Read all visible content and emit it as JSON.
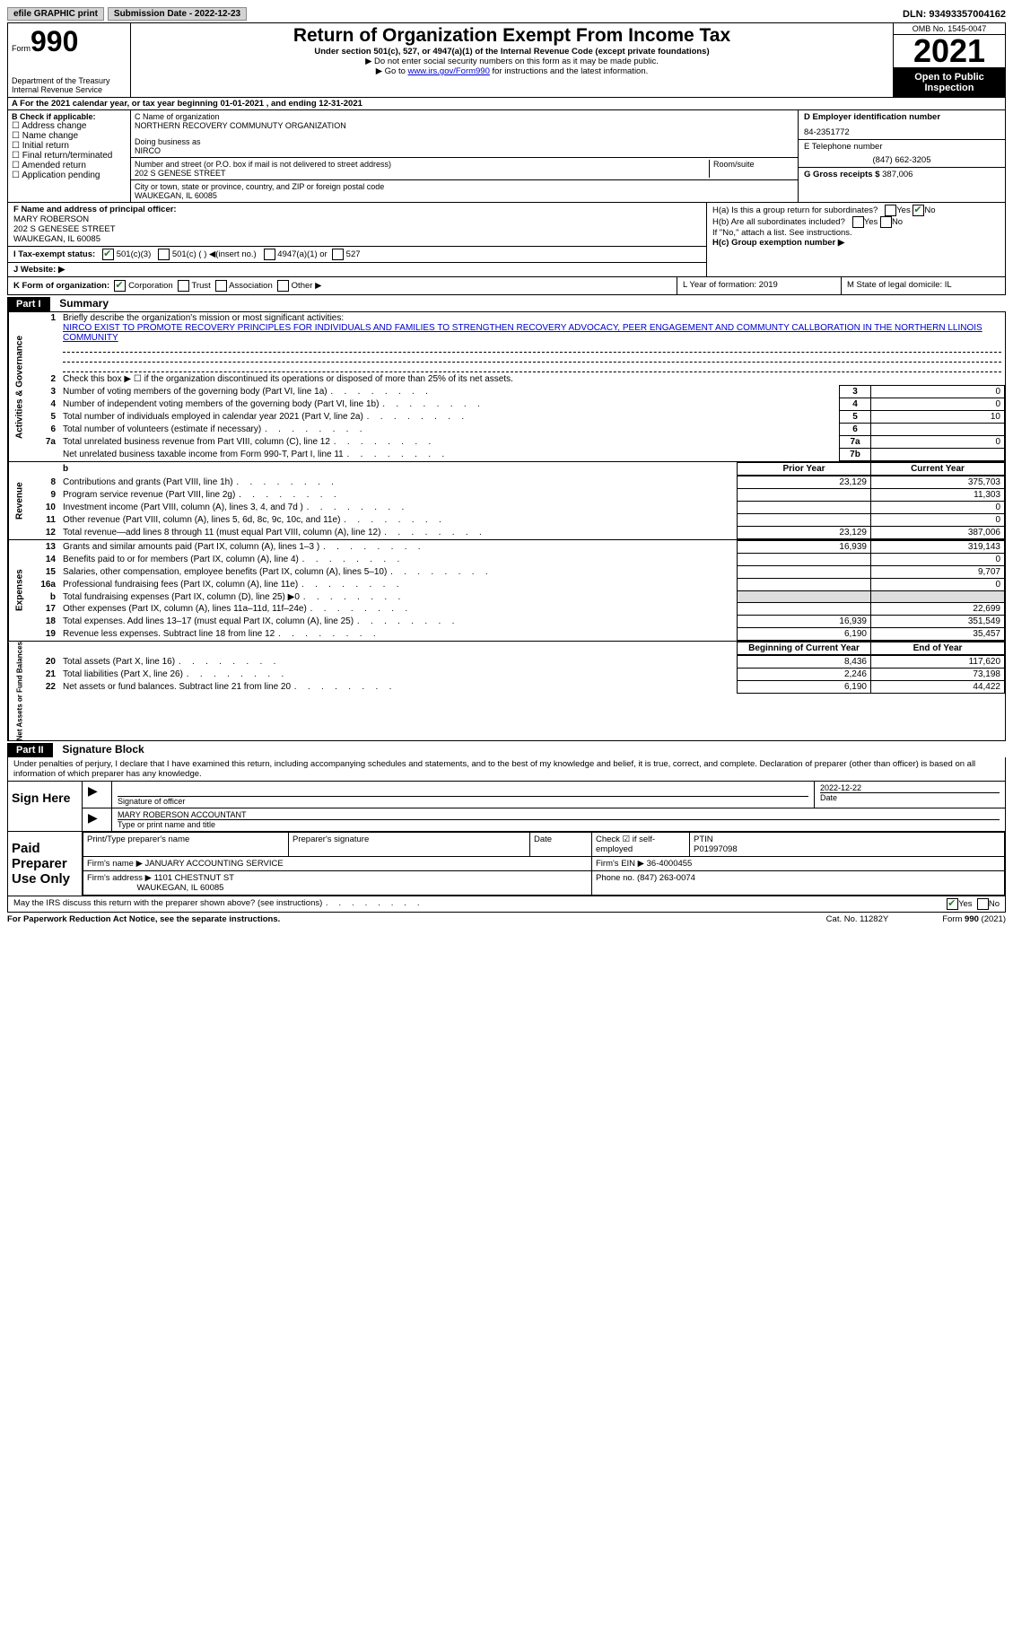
{
  "topbar": {
    "efile": "efile GRAPHIC print",
    "submission_label": "Submission Date - 2022-12-23",
    "dln": "DLN: 93493357004162"
  },
  "header": {
    "form_word": "Form",
    "form_num": "990",
    "dept1": "Department of the Treasury",
    "dept2": "Internal Revenue Service",
    "title": "Return of Organization Exempt From Income Tax",
    "sub": "Under section 501(c), 527, or 4947(a)(1) of the Internal Revenue Code (except private foundations)",
    "instr1": "▶ Do not enter social security numbers on this form as it may be made public.",
    "instr2_pre": "▶ Go to ",
    "instr2_link": "www.irs.gov/Form990",
    "instr2_post": " for instructions and the latest information.",
    "omb": "OMB No. 1545-0047",
    "year": "2021",
    "open": "Open to Public Inspection"
  },
  "rowA": "A For the 2021 calendar year, or tax year beginning 01-01-2021   , and ending 12-31-2021",
  "colB": {
    "head": "B Check if applicable:",
    "items": [
      "Address change",
      "Name change",
      "Initial return",
      "Final return/terminated",
      "Amended return",
      "Application pending"
    ]
  },
  "colC": {
    "name_lbl": "C Name of organization",
    "name": "NORTHERN RECOVERY COMMUNUTY ORGANIZATION",
    "dba_lbl": "Doing business as",
    "dba": "NIRCO",
    "addr_lbl": "Number and street (or P.O. box if mail is not delivered to street address)",
    "room_lbl": "Room/suite",
    "addr": "202 S GENESE STREET",
    "city_lbl": "City or town, state or province, country, and ZIP or foreign postal code",
    "city": "WAUKEGAN, IL  60085"
  },
  "colD": {
    "ein_lbl": "D Employer identification number",
    "ein": "84-2351772",
    "tel_lbl": "E Telephone number",
    "tel": "(847) 662-3205",
    "gross_lbl": "G Gross receipts $",
    "gross": "387,006"
  },
  "rowF": {
    "lbl": "F Name and address of principal officer:",
    "l1": "MARY ROBERSON",
    "l2": "202 S GENESEE STREET",
    "l3": "WAUKEGAN, IL  60085"
  },
  "rowH": {
    "a": "H(a)  Is this a group return for subordinates?",
    "b": "H(b)  Are all subordinates included?",
    "b2": "If \"No,\" attach a list. See instructions.",
    "c": "H(c)  Group exemption number ▶",
    "yes": "Yes",
    "no": "No"
  },
  "rowI": {
    "lbl": "I    Tax-exempt status:",
    "o1": "501(c)(3)",
    "o2": "501(c) (  ) ◀(insert no.)",
    "o3": "4947(a)(1) or",
    "o4": "527"
  },
  "rowJ": "J   Website: ▶",
  "rowK": {
    "k": "K Form of organization:",
    "corp": "Corporation",
    "trust": "Trust",
    "assoc": "Association",
    "other": "Other ▶",
    "l": "L Year of formation: 2019",
    "m": "M State of legal domicile: IL"
  },
  "part1": {
    "hdr": "Part I",
    "title": "Summary"
  },
  "summary": {
    "sec1_label": "Activities & Governance",
    "line1_lbl": "Briefly describe the organization's mission or most significant activities:",
    "line1_text": "NIRCO EXIST TO PROMOTE RECOVERY PRINCIPLES FOR INDIVIDUALS AND FAMILIES TO STRENGTHEN RECOVERY ADVOCACY, PEER ENGAGEMENT AND COMMUNTY CALLBORATION IN THE NORTHERN LLINOIS COMMUNITY",
    "line2": "Check this box ▶ ☐ if the organization discontinued its operations or disposed of more than 25% of its net assets.",
    "rows": [
      {
        "n": "3",
        "t": "Number of voting members of the governing body (Part VI, line 1a)",
        "box": "3",
        "v": "0"
      },
      {
        "n": "4",
        "t": "Number of independent voting members of the governing body (Part VI, line 1b)",
        "box": "4",
        "v": "0"
      },
      {
        "n": "5",
        "t": "Total number of individuals employed in calendar year 2021 (Part V, line 2a)",
        "box": "5",
        "v": "10"
      },
      {
        "n": "6",
        "t": "Total number of volunteers (estimate if necessary)",
        "box": "6",
        "v": ""
      },
      {
        "n": "7a",
        "t": "Total unrelated business revenue from Part VIII, column (C), line 12",
        "box": "7a",
        "v": "0"
      },
      {
        "n": "",
        "t": "Net unrelated business taxable income from Form 990-T, Part I, line 11",
        "box": "7b",
        "v": ""
      }
    ],
    "sec2_label": "Revenue",
    "col_prior": "Prior Year",
    "col_current": "Current Year",
    "rev_rows": [
      {
        "n": "8",
        "t": "Contributions and grants (Part VIII, line 1h)",
        "p": "23,129",
        "c": "375,703"
      },
      {
        "n": "9",
        "t": "Program service revenue (Part VIII, line 2g)",
        "p": "",
        "c": "11,303"
      },
      {
        "n": "10",
        "t": "Investment income (Part VIII, column (A), lines 3, 4, and 7d )",
        "p": "",
        "c": "0"
      },
      {
        "n": "11",
        "t": "Other revenue (Part VIII, column (A), lines 5, 6d, 8c, 9c, 10c, and 11e)",
        "p": "",
        "c": "0"
      },
      {
        "n": "12",
        "t": "Total revenue—add lines 8 through 11 (must equal Part VIII, column (A), line 12)",
        "p": "23,129",
        "c": "387,006"
      }
    ],
    "sec3_label": "Expenses",
    "exp_rows": [
      {
        "n": "13",
        "t": "Grants and similar amounts paid (Part IX, column (A), lines 1–3 )",
        "p": "16,939",
        "c": "319,143"
      },
      {
        "n": "14",
        "t": "Benefits paid to or for members (Part IX, column (A), line 4)",
        "p": "",
        "c": "0"
      },
      {
        "n": "15",
        "t": "Salaries, other compensation, employee benefits (Part IX, column (A), lines 5–10)",
        "p": "",
        "c": "9,707"
      },
      {
        "n": "16a",
        "t": "Professional fundraising fees (Part IX, column (A), line 11e)",
        "p": "",
        "c": "0"
      },
      {
        "n": "b",
        "t": "Total fundraising expenses (Part IX, column (D), line 25) ▶0",
        "p": "gray",
        "c": "gray"
      },
      {
        "n": "17",
        "t": "Other expenses (Part IX, column (A), lines 11a–11d, 11f–24e)",
        "p": "",
        "c": "22,699"
      },
      {
        "n": "18",
        "t": "Total expenses. Add lines 13–17 (must equal Part IX, column (A), line 25)",
        "p": "16,939",
        "c": "351,549"
      },
      {
        "n": "19",
        "t": "Revenue less expenses. Subtract line 18 from line 12",
        "p": "6,190",
        "c": "35,457"
      }
    ],
    "sec4_label": "Net Assets or Fund Balances",
    "col_begin": "Beginning of Current Year",
    "col_end": "End of Year",
    "net_rows": [
      {
        "n": "20",
        "t": "Total assets (Part X, line 16)",
        "p": "8,436",
        "c": "117,620"
      },
      {
        "n": "21",
        "t": "Total liabilities (Part X, line 26)",
        "p": "2,246",
        "c": "73,198"
      },
      {
        "n": "22",
        "t": "Net assets or fund balances. Subtract line 21 from line 20",
        "p": "6,190",
        "c": "44,422"
      }
    ]
  },
  "part2": {
    "hdr": "Part II",
    "title": "Signature Block",
    "text": "Under penalties of perjury, I declare that I have examined this return, including accompanying schedules and statements, and to the best of my knowledge and belief, it is true, correct, and complete. Declaration of preparer (other than officer) is based on all information of which preparer has any knowledge."
  },
  "sign": {
    "here": "Sign Here",
    "sig_lbl": "Signature of officer",
    "date_lbl": "Date",
    "date": "2022-12-22",
    "name": "MARY ROBERSON  ACCOUNTANT",
    "name_lbl": "Type or print name and title"
  },
  "prep": {
    "lbl": "Paid Preparer Use Only",
    "c1": "Print/Type preparer's name",
    "c2": "Preparer's signature",
    "c3": "Date",
    "c4": "Check ☑ if self-employed",
    "c5_lbl": "PTIN",
    "c5": "P01997098",
    "firm_name_lbl": "Firm's name    ▶",
    "firm_name": "JANUARY ACCOUNTING SERVICE",
    "firm_ein_lbl": "Firm's EIN ▶",
    "firm_ein": "36-4000455",
    "firm_addr_lbl": "Firm's address ▶",
    "firm_addr1": "1101 CHESTNUT ST",
    "firm_addr2": "WAUKEGAN, IL  60085",
    "phone_lbl": "Phone no.",
    "phone": "(847) 263-0074"
  },
  "discuss": "May the IRS discuss this return with the preparer shown above? (see instructions)",
  "foot": {
    "l": "For Paperwork Reduction Act Notice, see the separate instructions.",
    "m": "Cat. No. 11282Y",
    "r": "Form 990 (2021)"
  }
}
